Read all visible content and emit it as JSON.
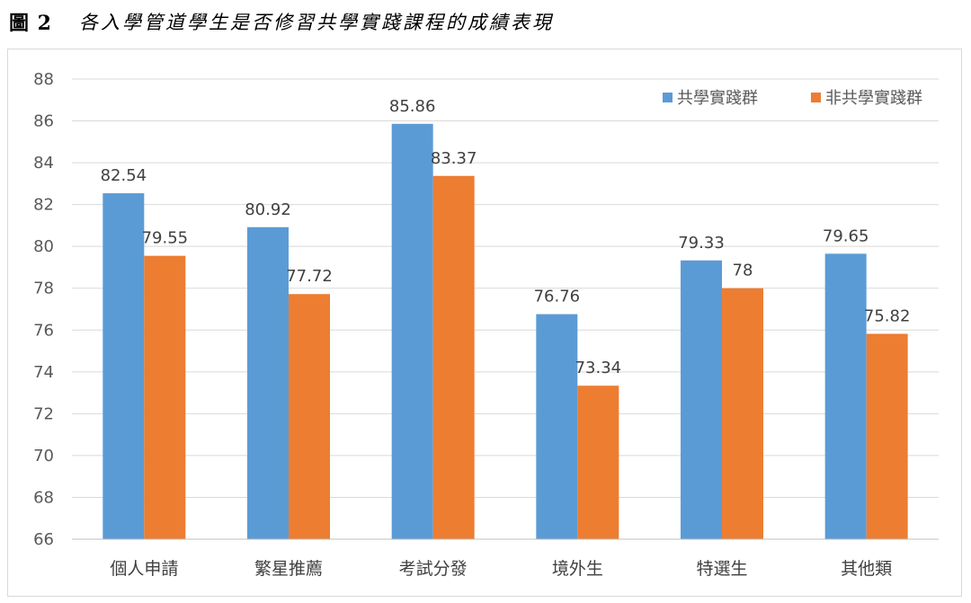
{
  "figure": {
    "label": "圖 2",
    "caption": "各入學管道學生是否修習共學實踐課程的成績表現"
  },
  "chart_data": {
    "type": "bar",
    "categories": [
      "個人申請",
      "繁星推薦",
      "考試分發",
      "境外生",
      "特選生",
      "其他類"
    ],
    "series": [
      {
        "name": "共學實踐群",
        "color": "#5b9bd5",
        "values": [
          82.54,
          80.92,
          85.86,
          76.76,
          79.33,
          79.65
        ],
        "labels": [
          "82.54",
          "80.92",
          "85.86",
          "76.76",
          "79.33",
          "79.65"
        ]
      },
      {
        "name": "非共學實踐群",
        "color": "#ed7d31",
        "values": [
          79.55,
          77.72,
          83.37,
          73.34,
          78,
          75.82
        ],
        "labels": [
          "79.55",
          "77.72",
          "83.37",
          "73.34",
          "78",
          "75.82"
        ]
      }
    ],
    "ylim": [
      66,
      88
    ],
    "yticks": [
      "66",
      "68",
      "70",
      "72",
      "74",
      "76",
      "78",
      "80",
      "82",
      "84",
      "86",
      "88"
    ],
    "grid": true,
    "legend_position": "top-right"
  }
}
